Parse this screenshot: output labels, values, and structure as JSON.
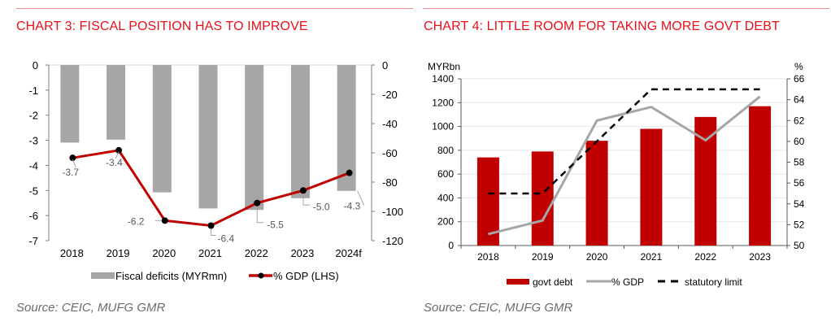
{
  "panels": {
    "chart3": {
      "title": "CHART 3: FISCAL POSITION HAS TO IMPROVE",
      "source": "Source: CEIC, MUFG GMR"
    },
    "chart4": {
      "title": "CHART 4: LITTLE ROOM FOR TAKING MORE GOVT DEBT",
      "source": "Source: CEIC, MUFG GMR"
    }
  },
  "colors": {
    "title_red": "#e8111b",
    "bar_grey": "#a6a6a6",
    "line_red": "#c00000",
    "bar_red": "#c00000",
    "line_grey": "#a6a6a6",
    "dash_black": "#000000"
  },
  "chart_data": [
    {
      "type": "bar",
      "title": "CHART 3: FISCAL POSITION HAS TO IMPROVE",
      "categories": [
        "2018",
        "2019",
        "2020",
        "2021",
        "2022",
        "2023",
        "2024f"
      ],
      "series": [
        {
          "name": "Fiscal deficits (MYRmn)",
          "type": "bar",
          "axis": "right",
          "values": [
            -53,
            -51,
            -87,
            -98,
            -99,
            -91,
            -86
          ]
        },
        {
          "name": "% GDP (LHS)",
          "type": "line",
          "axis": "left",
          "values": [
            -3.7,
            -3.4,
            -6.2,
            -6.4,
            -5.5,
            -5.0,
            -4.3
          ],
          "labels": [
            "-3.7",
            "-3.4",
            "-6.2",
            "-6.4",
            "-5.5",
            "-5.0",
            "-4.3"
          ]
        }
      ],
      "y_left": {
        "min": -7,
        "max": 0,
        "ticks": [
          "0",
          "-1",
          "-2",
          "-3",
          "-4",
          "-5",
          "-6",
          "-7"
        ]
      },
      "y_right": {
        "min": -120,
        "max": 0,
        "ticks": [
          "0",
          "-20",
          "-40",
          "-60",
          "-80",
          "-100",
          "-120"
        ]
      },
      "legend": {
        "position": "bottom",
        "entries": [
          "Fiscal deficits (MYRmn)",
          "% GDP (LHS)"
        ]
      },
      "grid": false
    },
    {
      "type": "bar",
      "title": "CHART 4: LITTLE ROOM FOR TAKING MORE GOVT DEBT",
      "categories": [
        "2018",
        "2019",
        "2020",
        "2021",
        "2022",
        "2023"
      ],
      "series": [
        {
          "name": "govt debt",
          "type": "bar",
          "axis": "left",
          "values": [
            740,
            790,
            880,
            980,
            1080,
            1170
          ]
        },
        {
          "name": "% GDP",
          "type": "line",
          "axis": "right",
          "values": [
            51.1,
            52.4,
            62.0,
            63.3,
            60.1,
            64.3
          ]
        },
        {
          "name": "statutory limit",
          "type": "dashed-line",
          "axis": "right",
          "values": [
            55,
            55,
            60,
            65,
            65,
            65
          ]
        }
      ],
      "y_left": {
        "label": "MYRbn",
        "min": 0,
        "max": 1400,
        "ticks": [
          "0",
          "200",
          "400",
          "600",
          "800",
          "1000",
          "1200",
          "1400"
        ]
      },
      "y_right": {
        "label": "%",
        "min": 50,
        "max": 66,
        "ticks": [
          "50",
          "52",
          "54",
          "56",
          "58",
          "60",
          "62",
          "64",
          "66"
        ]
      },
      "legend": {
        "position": "bottom",
        "entries": [
          "govt debt",
          "% GDP",
          "statutory limit"
        ]
      },
      "grid": true
    }
  ]
}
